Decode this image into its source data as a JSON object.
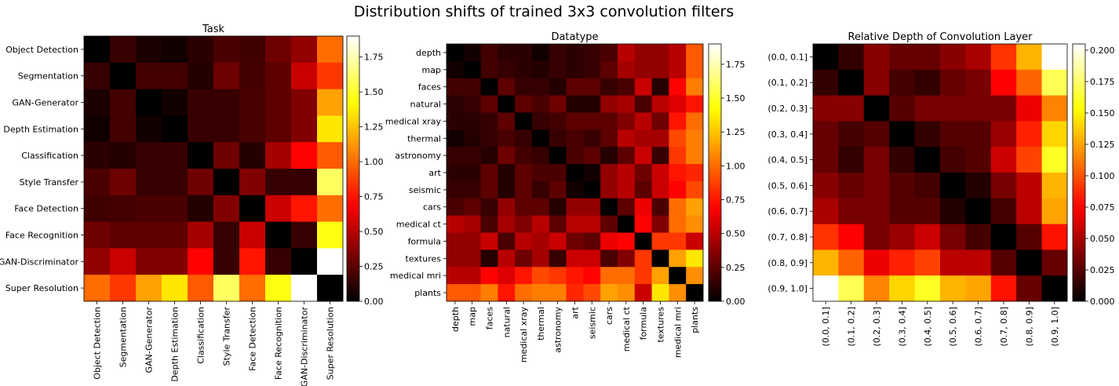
{
  "figure": {
    "title": "Distribution shifts of trained 3x3 convolution filters"
  },
  "chart_data": [
    {
      "type": "heatmap",
      "title": "Task",
      "labels": [
        "Object Detection",
        "Segmentation",
        "GAN-Generator",
        "Depth Estimation",
        "Classification",
        "Style Transfer",
        "Face Detection",
        "Face Recognition",
        "GAN-Discriminator",
        "Super Resolution"
      ],
      "values": [
        [
          0.0,
          0.15,
          0.07,
          0.05,
          0.12,
          0.2,
          0.17,
          0.3,
          0.4,
          1.0
        ],
        [
          0.15,
          0.0,
          0.18,
          0.18,
          0.1,
          0.3,
          0.18,
          0.25,
          0.55,
          0.85
        ],
        [
          0.07,
          0.18,
          0.0,
          0.05,
          0.15,
          0.15,
          0.2,
          0.25,
          0.35,
          1.15
        ],
        [
          0.05,
          0.18,
          0.05,
          0.0,
          0.15,
          0.15,
          0.2,
          0.25,
          0.35,
          1.35
        ],
        [
          0.12,
          0.1,
          0.15,
          0.15,
          0.0,
          0.3,
          0.1,
          0.45,
          0.7,
          0.95
        ],
        [
          0.2,
          0.3,
          0.15,
          0.15,
          0.3,
          0.0,
          0.35,
          0.15,
          0.15,
          1.6
        ],
        [
          0.17,
          0.18,
          0.2,
          0.2,
          0.1,
          0.35,
          0.0,
          0.55,
          0.75,
          1.0
        ],
        [
          0.3,
          0.25,
          0.25,
          0.25,
          0.45,
          0.15,
          0.55,
          0.0,
          0.15,
          1.45
        ],
        [
          0.4,
          0.55,
          0.35,
          0.35,
          0.7,
          0.15,
          0.75,
          0.15,
          0.0,
          1.9
        ],
        [
          1.0,
          0.85,
          1.15,
          1.35,
          0.95,
          1.6,
          1.0,
          1.45,
          1.9,
          0.0
        ]
      ],
      "colorbar": {
        "min": 0.0,
        "max": 1.9,
        "ticks": [
          "0.00",
          "0.25",
          "0.50",
          "0.75",
          "1.00",
          "1.25",
          "1.50",
          "1.75"
        ],
        "tick_values": [
          0.0,
          0.25,
          0.5,
          0.75,
          1.0,
          1.25,
          1.5,
          1.75
        ]
      },
      "colormap": "hot"
    },
    {
      "type": "heatmap",
      "title": "Datatype",
      "labels": [
        "depth",
        "map",
        "faces",
        "natural",
        "medical xray",
        "thermal",
        "astronomy",
        "art",
        "seismic",
        "cars",
        "medical ct",
        "formula",
        "textures",
        "medical mri",
        "plants"
      ],
      "values": [
        [
          0.0,
          0.05,
          0.18,
          0.12,
          0.12,
          0.05,
          0.15,
          0.12,
          0.15,
          0.2,
          0.5,
          0.4,
          0.4,
          0.5,
          0.95
        ],
        [
          0.05,
          0.0,
          0.18,
          0.15,
          0.12,
          0.1,
          0.15,
          0.12,
          0.15,
          0.25,
          0.45,
          0.4,
          0.4,
          0.5,
          0.95
        ],
        [
          0.18,
          0.18,
          0.0,
          0.25,
          0.15,
          0.15,
          0.1,
          0.25,
          0.25,
          0.15,
          0.2,
          0.55,
          0.1,
          0.7,
          1.05
        ],
        [
          0.12,
          0.15,
          0.25,
          0.0,
          0.25,
          0.2,
          0.3,
          0.1,
          0.1,
          0.4,
          0.45,
          0.2,
          0.5,
          0.6,
          0.75
        ],
        [
          0.12,
          0.12,
          0.15,
          0.25,
          0.0,
          0.15,
          0.18,
          0.25,
          0.25,
          0.25,
          0.35,
          0.5,
          0.3,
          0.75,
          1.0
        ],
        [
          0.05,
          0.1,
          0.15,
          0.2,
          0.15,
          0.0,
          0.15,
          0.2,
          0.15,
          0.25,
          0.5,
          0.45,
          0.45,
          0.9,
          1.05
        ],
        [
          0.15,
          0.15,
          0.1,
          0.3,
          0.18,
          0.15,
          0.0,
          0.2,
          0.25,
          0.1,
          0.25,
          0.55,
          0.15,
          0.85,
          1.05
        ],
        [
          0.12,
          0.12,
          0.25,
          0.1,
          0.25,
          0.2,
          0.2,
          0.0,
          0.05,
          0.4,
          0.5,
          0.3,
          0.55,
          0.75,
          0.8
        ],
        [
          0.15,
          0.15,
          0.25,
          0.1,
          0.25,
          0.15,
          0.25,
          0.05,
          0.0,
          0.4,
          0.5,
          0.25,
          0.55,
          0.7,
          0.9
        ],
        [
          0.2,
          0.25,
          0.15,
          0.4,
          0.25,
          0.25,
          0.1,
          0.4,
          0.4,
          0.0,
          0.25,
          0.65,
          0.2,
          1.0,
          1.15
        ],
        [
          0.5,
          0.45,
          0.2,
          0.45,
          0.35,
          0.5,
          0.25,
          0.5,
          0.5,
          0.25,
          0.0,
          0.7,
          0.35,
          1.0,
          1.1
        ],
        [
          0.4,
          0.4,
          0.55,
          0.2,
          0.5,
          0.45,
          0.55,
          0.3,
          0.25,
          0.65,
          0.7,
          0.0,
          0.85,
          0.85,
          0.55
        ],
        [
          0.4,
          0.4,
          0.1,
          0.5,
          0.3,
          0.45,
          0.15,
          0.55,
          0.55,
          0.2,
          0.35,
          0.85,
          0.0,
          1.15,
          1.35
        ],
        [
          0.5,
          0.5,
          0.7,
          0.6,
          0.75,
          0.9,
          0.85,
          0.75,
          0.7,
          1.0,
          1.0,
          0.85,
          1.15,
          0.0,
          1.1
        ],
        [
          0.95,
          0.95,
          1.05,
          0.75,
          1.0,
          1.05,
          1.05,
          0.8,
          0.9,
          1.15,
          1.1,
          0.55,
          1.35,
          1.1,
          0.0
        ]
      ],
      "colorbar": {
        "min": 0.0,
        "max": 1.9,
        "ticks": [
          "0.00",
          "0.25",
          "0.50",
          "0.75",
          "1.00",
          "1.25",
          "1.50",
          "1.75"
        ],
        "tick_values": [
          0.0,
          0.25,
          0.5,
          0.75,
          1.0,
          1.25,
          1.5,
          1.75
        ]
      },
      "colormap": "hot"
    },
    {
      "type": "heatmap",
      "title": "Relative Depth of Convolution Layer",
      "labels": [
        "(0.0, 0.1]",
        "(0.1, 0.2]",
        "(0.2, 0.3]",
        "(0.3, 0.4]",
        "(0.4, 0.5]",
        "(0.5, 0.6]",
        "(0.6, 0.7]",
        "(0.7, 0.8]",
        "(0.8, 0.9]",
        "(0.9, 1.0]"
      ],
      "values": [
        [
          0.0,
          0.015,
          0.04,
          0.03,
          0.03,
          0.04,
          0.05,
          0.09,
          0.13,
          0.205
        ],
        [
          0.015,
          0.0,
          0.04,
          0.02,
          0.015,
          0.03,
          0.035,
          0.075,
          0.105,
          0.17
        ],
        [
          0.04,
          0.04,
          0.0,
          0.025,
          0.035,
          0.035,
          0.035,
          0.035,
          0.07,
          0.115
        ],
        [
          0.03,
          0.02,
          0.025,
          0.0,
          0.015,
          0.025,
          0.025,
          0.045,
          0.085,
          0.14
        ],
        [
          0.03,
          0.015,
          0.035,
          0.015,
          0.0,
          0.02,
          0.025,
          0.06,
          0.095,
          0.16
        ],
        [
          0.04,
          0.03,
          0.035,
          0.025,
          0.02,
          0.0,
          0.01,
          0.035,
          0.055,
          0.13
        ],
        [
          0.05,
          0.035,
          0.035,
          0.025,
          0.025,
          0.01,
          0.0,
          0.02,
          0.055,
          0.125
        ],
        [
          0.09,
          0.075,
          0.035,
          0.045,
          0.06,
          0.035,
          0.02,
          0.0,
          0.025,
          0.08
        ],
        [
          0.13,
          0.105,
          0.07,
          0.085,
          0.095,
          0.055,
          0.055,
          0.025,
          0.0,
          0.03
        ],
        [
          0.205,
          0.17,
          0.115,
          0.14,
          0.16,
          0.13,
          0.125,
          0.08,
          0.03,
          0.0
        ]
      ],
      "colorbar": {
        "min": 0.0,
        "max": 0.205,
        "ticks": [
          "0.000",
          "0.025",
          "0.050",
          "0.075",
          "0.100",
          "0.125",
          "0.150",
          "0.175",
          "0.200"
        ],
        "tick_values": [
          0.0,
          0.025,
          0.05,
          0.075,
          0.1,
          0.125,
          0.15,
          0.175,
          0.2
        ]
      },
      "colormap": "hot"
    }
  ]
}
